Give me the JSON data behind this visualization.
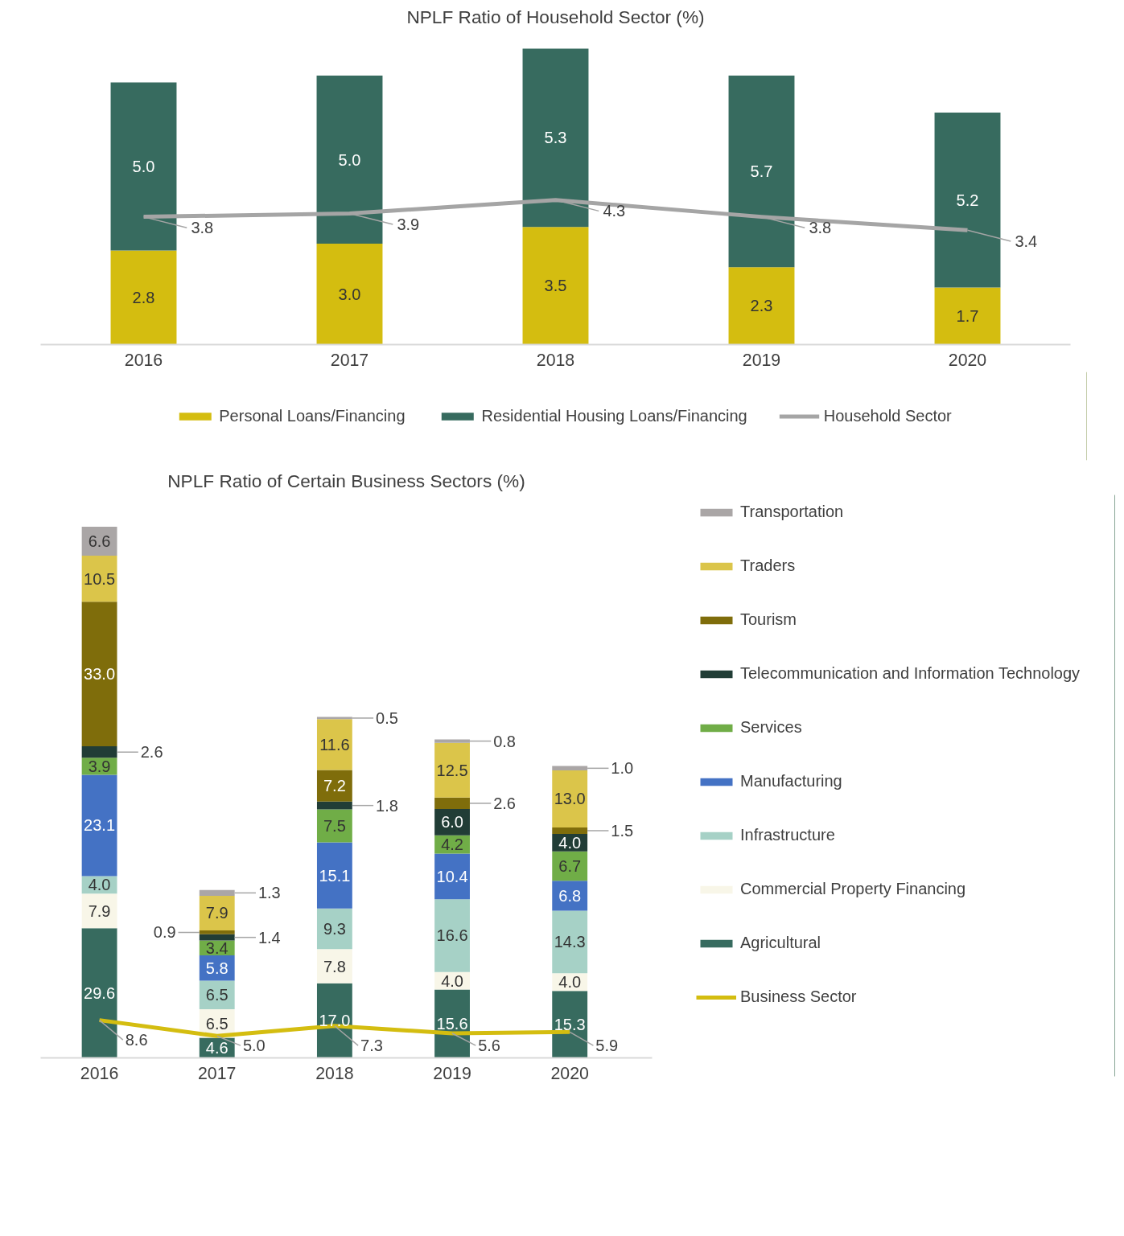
{
  "chart_data": [
    {
      "type": "bar",
      "title": "NPLF Ratio of Household Sector (%)",
      "stacked": true,
      "data_labels": true,
      "grid": false,
      "legend": "bottom",
      "marker": "none",
      "categories": [
        "2016",
        "2017",
        "2018",
        "2019",
        "2020"
      ],
      "series": [
        {
          "name": "Personal Loans/Financing",
          "color": "#d4bd10",
          "values": [
            2.8,
            3.0,
            3.5,
            2.3,
            1.7
          ],
          "value_labels": [
            "2.8",
            "3.0",
            "3.5",
            "2.3",
            "1.7"
          ]
        },
        {
          "name": "Residential Housing Loans/Financing",
          "color": "#376b5f",
          "values": [
            5.0,
            5.0,
            5.3,
            5.7,
            5.2
          ],
          "value_labels": [
            "5.0",
            "5.0",
            "5.3",
            "5.7",
            "5.2"
          ]
        },
        {
          "name": "Household Sector",
          "type": "line",
          "color": "#a5a5a5",
          "values": [
            3.8,
            3.9,
            4.3,
            3.8,
            3.4
          ],
          "value_labels": [
            "3.8",
            "3.9",
            "4.3",
            "3.8",
            "3.4"
          ]
        }
      ]
    },
    {
      "type": "bar",
      "title": "NPLF Ratio of Certain Business Sectors (%)",
      "stacked": true,
      "data_labels": true,
      "grid": false,
      "legend": "right",
      "marker": "none",
      "categories": [
        "2016",
        "2017",
        "2018",
        "2019",
        "2020"
      ],
      "series": [
        {
          "name": "Agricultural",
          "color": "#376b5f",
          "values": [
            29.6,
            4.6,
            17.0,
            15.6,
            15.3
          ],
          "value_labels": [
            "29.6",
            "4.6",
            "17.0",
            "15.6",
            "15.3"
          ]
        },
        {
          "name": "Commercial Property Financing",
          "color": "#f8f6e8",
          "values": [
            7.9,
            6.5,
            7.8,
            4.0,
            4.0
          ],
          "value_labels": [
            "7.9",
            "6.5",
            "7.8",
            "4.0",
            "4.0"
          ]
        },
        {
          "name": "Infrastructure",
          "color": "#a6d1c6",
          "values": [
            4.0,
            6.5,
            9.3,
            16.6,
            14.3
          ],
          "value_labels": [
            "4.0",
            "6.5",
            "9.3",
            "16.6",
            "14.3"
          ]
        },
        {
          "name": "Manufacturing",
          "color": "#4472c4",
          "values": [
            23.1,
            5.8,
            15.1,
            10.4,
            6.8
          ],
          "value_labels": [
            "23.1",
            "5.8",
            "15.1",
            "10.4",
            "6.8"
          ]
        },
        {
          "name": "Services",
          "color": "#70ad47",
          "values": [
            3.9,
            3.4,
            7.5,
            4.2,
            6.7
          ],
          "value_labels": [
            "3.9",
            "3.4",
            "7.5",
            "4.2",
            "6.7"
          ]
        },
        {
          "name": "Telecommunication and Information Technology",
          "color": "#213d36",
          "values": [
            2.6,
            1.4,
            1.8,
            6.0,
            4.0
          ],
          "value_labels": [
            "2.6",
            "1.4",
            "1.8",
            "6.0",
            "4.0"
          ]
        },
        {
          "name": "Tourism",
          "color": "#7f6d0b",
          "values": [
            33.0,
            0.9,
            7.2,
            2.6,
            1.5
          ],
          "value_labels": [
            "33.0",
            "0.9",
            "7.2",
            "2.6",
            "1.5"
          ]
        },
        {
          "name": "Traders",
          "color": "#dbc54a",
          "values": [
            10.5,
            7.9,
            11.6,
            12.5,
            13.0
          ],
          "value_labels": [
            "10.5",
            "7.9",
            "11.6",
            "12.5",
            "13.0"
          ]
        },
        {
          "name": "Transportation",
          "color": "#aaa6a6",
          "values": [
            6.6,
            1.3,
            0.5,
            0.8,
            1.0
          ],
          "value_labels": [
            "6.6",
            "1.3",
            "0.5",
            "0.8",
            "1.0"
          ]
        },
        {
          "name": "Business Sector",
          "type": "line",
          "color": "#d4bd10",
          "values": [
            8.6,
            5.0,
            7.3,
            5.6,
            5.9
          ],
          "value_labels": [
            "8.6",
            "5.0",
            "7.3",
            "5.6",
            "5.9"
          ]
        }
      ]
    }
  ]
}
